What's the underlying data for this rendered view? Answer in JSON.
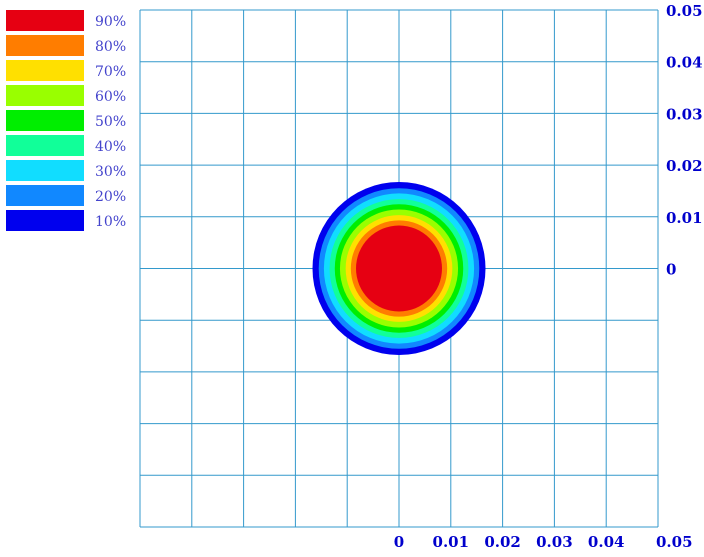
{
  "chart_data": {
    "type": "heatmap",
    "title": "",
    "xlabel": "",
    "ylabel": "",
    "grid": true,
    "legend_position": "top-left",
    "x_ticks": [
      "0",
      "0.01",
      "0.02",
      "0.03",
      "0.04",
      "0.05"
    ],
    "x_tick_values": [
      0,
      0.01,
      0.02,
      0.03,
      0.04,
      0.05
    ],
    "y_ticks": [
      "0",
      "0.01",
      "0.02",
      "0.03",
      "0.04",
      "0.05"
    ],
    "y_tick_values": [
      0,
      0.01,
      0.02,
      0.03,
      0.04,
      0.05
    ],
    "xlim": [
      -0.05,
      0.05
    ],
    "ylim": [
      -0.05,
      0.05
    ],
    "center": [
      0,
      0
    ],
    "levels": [
      {
        "label": "90%",
        "level": 0.9,
        "color": "#e60012",
        "radius": 0.0083
      },
      {
        "label": "80%",
        "level": 0.8,
        "color": "#ff7d00",
        "radius": 0.0093
      },
      {
        "label": "70%",
        "level": 0.7,
        "color": "#ffe000",
        "radius": 0.0103
      },
      {
        "label": "60%",
        "level": 0.6,
        "color": "#99ff00",
        "radius": 0.0114
      },
      {
        "label": "50%",
        "level": 0.5,
        "color": "#00ee00",
        "radius": 0.0124
      },
      {
        "label": "40%",
        "level": 0.4,
        "color": "#11ff99",
        "radius": 0.0134
      },
      {
        "label": "30%",
        "level": 0.3,
        "color": "#11ddff",
        "radius": 0.0145
      },
      {
        "label": "20%",
        "level": 0.2,
        "color": "#1188ff",
        "radius": 0.0155
      },
      {
        "label": "10%",
        "level": 0.1,
        "color": "#0000ee",
        "radius": 0.0167
      }
    ],
    "grid_color": "#3399cc",
    "tick_color": "#0000cc",
    "legend_text_color": "#4444cc"
  }
}
